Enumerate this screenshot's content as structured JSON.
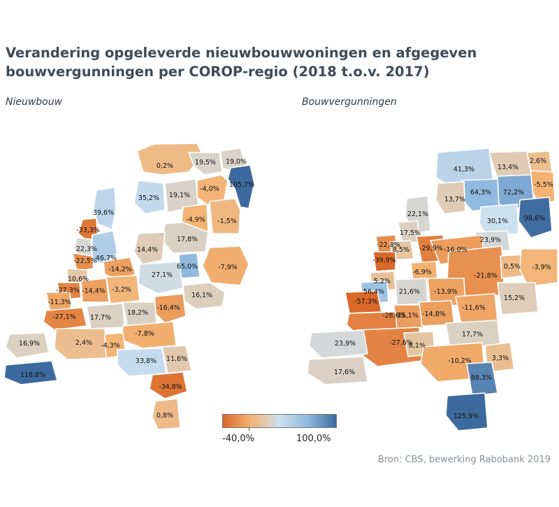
{
  "title": "Verandering opgeleverde nieuwbouwwoningen en afgegeven bouwvergunningen per COROP-regio (2018 t.o.v. 2017)",
  "maps": [
    {
      "subtitle": "Nieuwbouw",
      "labels": [
        "0,2%",
        "19,5%",
        "19,0%",
        "105,7%",
        "35,2%",
        "19,1%",
        "-4,0%",
        "39,6%",
        "-4,9%",
        "-1,5%",
        "-33,3%",
        "17,8%",
        "22,3%",
        "14,4%",
        "46,7%",
        "-22,5%",
        "-14,2%",
        "65,0%",
        "-7,9%",
        "10,6%",
        "27,1%",
        "-27,3%",
        "-14,4%",
        "-3,2%",
        "16,1%",
        "-11,3%",
        "-16,4%",
        "-27,1%",
        "18,2%",
        "17,7%",
        "-7,8%",
        "16,9%",
        "2,4%",
        "-4,3%",
        "11,6%",
        "33,8%",
        "118,8%",
        "-34,8%",
        "0,8%"
      ]
    },
    {
      "subtitle": "Bouwvergunningen",
      "labels": [
        "2,6%",
        "41,3%",
        "13,4%",
        "-5,5%",
        "64,3%",
        "72,2%",
        "13,7%",
        "98,6%",
        "22,1%",
        "30,1%",
        "17,5%",
        "-22,8%",
        "8,5%",
        "-29,9%",
        "23,9%",
        "-16,0%",
        "-39,9%",
        "-6,9%",
        "-21,8%",
        "0,5%",
        "-3,9%",
        "5,2%",
        "56,4%",
        "21,6%",
        "-13,9%",
        "-57,3%",
        "-15,1%",
        "-14,8%",
        "-11,6%",
        "15,2%",
        "-28,6%",
        "17,7%",
        "-27,6%",
        "23,9%",
        "8,1%",
        "-10,2%",
        "3,3%",
        "17,6%",
        "88,3%",
        "125,9%"
      ]
    }
  ],
  "legend": {
    "min_label": "-40,0%",
    "max_label": "100,0%",
    "min": -40,
    "max": 100,
    "colors": [
      "#d9692a",
      "#f4b474",
      "#cde0ee",
      "#8fb9df",
      "#3d6a9e"
    ]
  },
  "source": "Bron: CBS, bewerking Rabobank 2019"
}
